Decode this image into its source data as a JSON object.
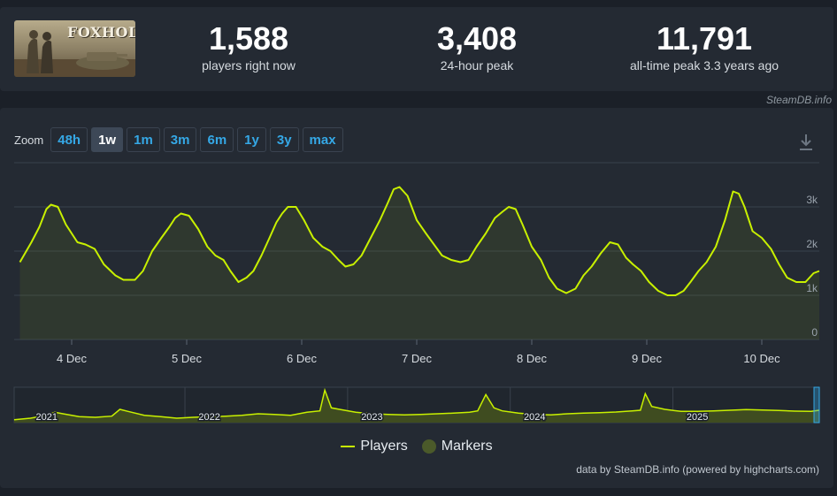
{
  "game": {
    "logo_text": "FOXHOLE"
  },
  "stats": [
    {
      "value": "1,588",
      "label": "players right now"
    },
    {
      "value": "3,408",
      "label": "24-hour peak"
    },
    {
      "value": "11,791",
      "label": "all-time peak 3.3 years ago"
    }
  ],
  "watermark": "SteamDB.info",
  "zoom": {
    "label": "Zoom",
    "buttons": [
      "48h",
      "1w",
      "1m",
      "3m",
      "6m",
      "1y",
      "3y",
      "max"
    ],
    "active": "1w"
  },
  "legend": {
    "players": "Players",
    "markers": "Markers"
  },
  "credits": "data by SteamDB.info (powered by highcharts.com)",
  "colors": {
    "series": "#c8f000",
    "marker": "#4b5a2a",
    "accent": "#35a8e6"
  },
  "chart_data": {
    "type": "line",
    "series": [
      {
        "name": "Players",
        "x": [
          3.55,
          3.65,
          3.72,
          3.78,
          3.82,
          3.88,
          3.95,
          4.05,
          4.12,
          4.2,
          4.28,
          4.38,
          4.45,
          4.55,
          4.62,
          4.7,
          4.78,
          4.85,
          4.9,
          4.95,
          5.02,
          5.1,
          5.18,
          5.25,
          5.32,
          5.38,
          5.45,
          5.52,
          5.58,
          5.65,
          5.72,
          5.78,
          5.83,
          5.88,
          5.95,
          6.02,
          6.1,
          6.18,
          6.25,
          6.32,
          6.38,
          6.45,
          6.52,
          6.6,
          6.68,
          6.75,
          6.8,
          6.85,
          6.92,
          7.0,
          7.08,
          7.15,
          7.22,
          7.3,
          7.38,
          7.45,
          7.52,
          7.6,
          7.68,
          7.75,
          7.8,
          7.86,
          7.92,
          8.0,
          8.08,
          8.15,
          8.22,
          8.3,
          8.38,
          8.45,
          8.52,
          8.6,
          8.68,
          8.75,
          8.82,
          8.88,
          8.95,
          9.02,
          9.1,
          9.18,
          9.25,
          9.32,
          9.38,
          9.45,
          9.52,
          9.6,
          9.68,
          9.75,
          9.8,
          9.85,
          9.92,
          10.0,
          10.08,
          10.15,
          10.22,
          10.3,
          10.38,
          10.45,
          10.5
        ],
        "y": [
          1750,
          2200,
          2550,
          2950,
          3050,
          3000,
          2600,
          2200,
          2150,
          2050,
          1700,
          1450,
          1350,
          1350,
          1550,
          2000,
          2300,
          2550,
          2750,
          2850,
          2800,
          2500,
          2100,
          1900,
          1800,
          1550,
          1300,
          1400,
          1550,
          1900,
          2300,
          2650,
          2850,
          3000,
          3000,
          2700,
          2300,
          2100,
          2000,
          1800,
          1650,
          1700,
          1900,
          2300,
          2700,
          3100,
          3400,
          3450,
          3250,
          2700,
          2400,
          2150,
          1900,
          1800,
          1750,
          1800,
          2100,
          2400,
          2750,
          2900,
          3000,
          2950,
          2600,
          2100,
          1800,
          1400,
          1150,
          1050,
          1150,
          1450,
          1650,
          1950,
          2200,
          2150,
          1850,
          1700,
          1550,
          1300,
          1100,
          1000,
          1000,
          1100,
          1300,
          1550,
          1750,
          2100,
          2700,
          3350,
          3300,
          3000,
          2450,
          2300,
          2050,
          1700,
          1400,
          1300,
          1300,
          1500,
          1550
        ]
      }
    ],
    "xlabels": [
      "4 Dec",
      "5 Dec",
      "6 Dec",
      "7 Dec",
      "8 Dec",
      "9 Dec",
      "10 Dec"
    ],
    "xticks": [
      4,
      5,
      6,
      7,
      8,
      9,
      10
    ],
    "xlim": [
      3.5,
      10.5
    ],
    "ylim": [
      0,
      4000
    ],
    "yticks": [
      0,
      1000,
      2000,
      3000
    ],
    "ylabels": [
      "0",
      "1k",
      "2k",
      "3k"
    ],
    "grid": true,
    "legend_position": "bottom",
    "navigator": {
      "labels": [
        "2021",
        "2022",
        "2023",
        "2024",
        "2025"
      ],
      "label_positions": [
        2021.2,
        2022.2,
        2023.2,
        2024.2,
        2025.2
      ],
      "xlim": [
        2021.0,
        2025.95
      ],
      "ylim": [
        0,
        12000
      ],
      "x": [
        2021.0,
        2021.1,
        2021.2,
        2021.25,
        2021.3,
        2021.4,
        2021.5,
        2021.6,
        2021.65,
        2021.7,
        2021.8,
        2021.9,
        2022.0,
        2022.1,
        2022.2,
        2022.3,
        2022.4,
        2022.5,
        2022.6,
        2022.7,
        2022.8,
        2022.88,
        2022.91,
        2022.95,
        2023.0,
        2023.1,
        2023.2,
        2023.3,
        2023.4,
        2023.5,
        2023.6,
        2023.7,
        2023.8,
        2023.85,
        2023.9,
        2023.95,
        2024.0,
        2024.1,
        2024.2,
        2024.3,
        2024.4,
        2024.5,
        2024.6,
        2024.7,
        2024.8,
        2024.85,
        2024.88,
        2024.92,
        2025.0,
        2025.1,
        2025.2,
        2025.3,
        2025.4,
        2025.5,
        2025.6,
        2025.7,
        2025.8,
        2025.9,
        2025.95
      ],
      "y": [
        1000,
        1500,
        2500,
        3500,
        3000,
        2000,
        1800,
        2200,
        4500,
        3800,
        2500,
        2000,
        1500,
        1800,
        2000,
        2200,
        2500,
        3000,
        2800,
        2500,
        3500,
        4000,
        11000,
        5000,
        4500,
        3500,
        3000,
        2800,
        2600,
        2800,
        3000,
        3200,
        3500,
        4000,
        9500,
        5000,
        4000,
        3200,
        2800,
        2600,
        3000,
        3200,
        3400,
        3600,
        4000,
        4200,
        9800,
        5500,
        4500,
        3800,
        3800,
        4000,
        4200,
        4400,
        4300,
        4100,
        3900,
        3800,
        4200
      ]
    }
  }
}
